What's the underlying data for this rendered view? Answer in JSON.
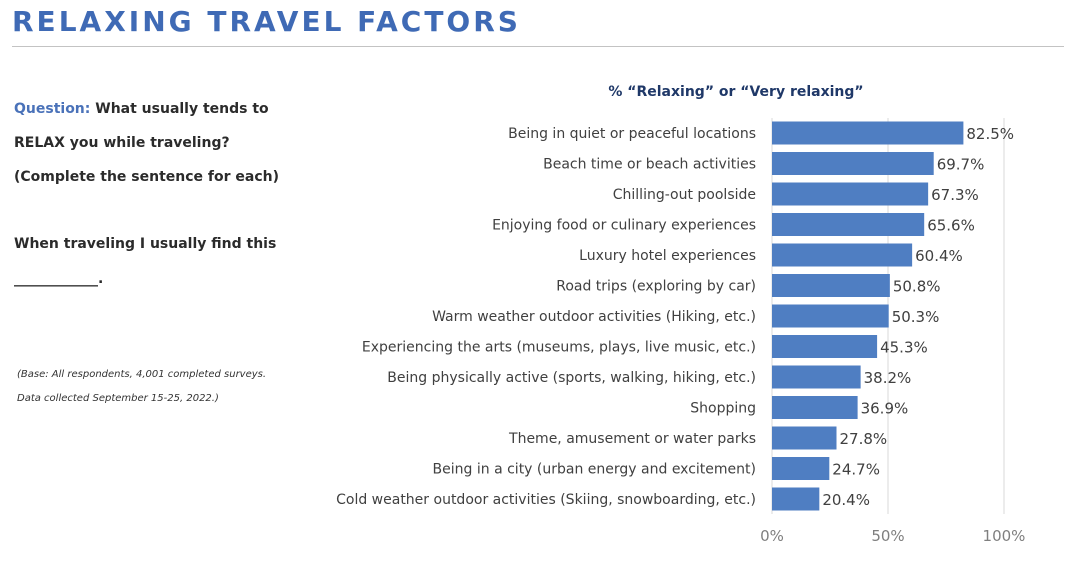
{
  "page": {
    "title": "RELAXING TRAVEL FACTORS"
  },
  "question": {
    "label": "Question:",
    "line1": "What usually tends to",
    "line2": "RELAX you while traveling?",
    "line3": "(Complete the sentence for each)",
    "sentence": "When traveling I usually find this",
    "blank": "____________."
  },
  "base_note": {
    "line1": "(Base: All respondents, 4,001 completed surveys.",
    "line2": "Data collected September 15-25, 2022.)"
  },
  "colors": {
    "title": "#3f6ab5",
    "bar": "#4f7ec2",
    "chart_title": "#1f3868",
    "grid": "#d9d9d9"
  },
  "chart_data": {
    "type": "bar",
    "orientation": "horizontal",
    "title": "% “Relaxing” or “Very relaxing”",
    "categories": [
      "Being in quiet or peaceful locations",
      "Beach time or beach activities",
      "Chilling-out poolside",
      "Enjoying food or culinary experiences",
      "Luxury hotel experiences",
      "Road trips (exploring by car)",
      "Warm weather outdoor activities (Hiking, etc.)",
      "Experiencing the arts (museums, plays, live music, etc.)",
      "Being physically active (sports, walking, hiking, etc.)",
      "Shopping",
      "Theme, amusement or water parks",
      "Being in a city (urban energy and excitement)",
      "Cold weather outdoor activities (Skiing, snowboarding, etc.)"
    ],
    "values": [
      82.5,
      69.7,
      67.3,
      65.6,
      60.4,
      50.8,
      50.3,
      45.3,
      38.2,
      36.9,
      27.8,
      24.7,
      20.4
    ],
    "value_labels": [
      "82.5%",
      "69.7%",
      "67.3%",
      "65.6%",
      "60.4%",
      "50.8%",
      "50.3%",
      "45.3%",
      "38.2%",
      "36.9%",
      "27.8%",
      "24.7%",
      "20.4%"
    ],
    "xlim": [
      0,
      100
    ],
    "xticks": [
      0,
      50,
      100
    ],
    "xtick_labels": [
      "0%",
      "50%",
      "100%"
    ],
    "grid": true
  }
}
